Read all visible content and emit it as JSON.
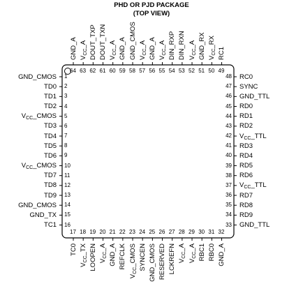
{
  "diagram": {
    "title": "PHD OR PJD PACKAGE",
    "subtitle": "(TOP VIEW)",
    "pins": {
      "left": [
        {
          "num": "1",
          "label": "GND_CMOS"
        },
        {
          "num": "2",
          "label": "TD0"
        },
        {
          "num": "3",
          "label": "TD1"
        },
        {
          "num": "4",
          "label": "TD2"
        },
        {
          "num": "5",
          "label": "VCC_CMOS"
        },
        {
          "num": "6",
          "label": "TD3"
        },
        {
          "num": "7",
          "label": "TD4"
        },
        {
          "num": "8",
          "label": "TD5"
        },
        {
          "num": "9",
          "label": "TD6"
        },
        {
          "num": "10",
          "label": "VCC_CMOS"
        },
        {
          "num": "11",
          "label": "TD7"
        },
        {
          "num": "12",
          "label": "TD8"
        },
        {
          "num": "13",
          "label": "TD9"
        },
        {
          "num": "14",
          "label": "GND_CMOS"
        },
        {
          "num": "15",
          "label": "GND_TX"
        },
        {
          "num": "16",
          "label": "TC1"
        }
      ],
      "right": [
        {
          "num": "48",
          "label": "RC0"
        },
        {
          "num": "47",
          "label": "SYNC"
        },
        {
          "num": "46",
          "label": "GND_TTL"
        },
        {
          "num": "45",
          "label": "RD0"
        },
        {
          "num": "44",
          "label": "RD1"
        },
        {
          "num": "43",
          "label": "RD2"
        },
        {
          "num": "42",
          "label": "VCC_TTL"
        },
        {
          "num": "41",
          "label": "RD3"
        },
        {
          "num": "40",
          "label": "RD4"
        },
        {
          "num": "39",
          "label": "RD5"
        },
        {
          "num": "38",
          "label": "RD6"
        },
        {
          "num": "37",
          "label": "VCC_TTL"
        },
        {
          "num": "36",
          "label": "RD7"
        },
        {
          "num": "35",
          "label": "RD8"
        },
        {
          "num": "34",
          "label": "RD9"
        },
        {
          "num": "33",
          "label": "GND_TTL"
        }
      ],
      "top": [
        {
          "num": "64",
          "label": "GND_A"
        },
        {
          "num": "63",
          "label": "VCC_A"
        },
        {
          "num": "62",
          "label": "DOUT_TXP"
        },
        {
          "num": "61",
          "label": "DOUT_TXN"
        },
        {
          "num": "60",
          "label": "VCC_A"
        },
        {
          "num": "59",
          "label": "GND_A"
        },
        {
          "num": "58",
          "label": "GND_CMOS"
        },
        {
          "num": "57",
          "label": "VCC_A"
        },
        {
          "num": "56",
          "label": "GND_A"
        },
        {
          "num": "55",
          "label": "VCC_A"
        },
        {
          "num": "54",
          "label": "DIN_RXP"
        },
        {
          "num": "53",
          "label": "DIN_RXN"
        },
        {
          "num": "52",
          "label": "VCC_A"
        },
        {
          "num": "51",
          "label": "GND_RX"
        },
        {
          "num": "50",
          "label": "VCC_RX"
        },
        {
          "num": "49",
          "label": "RC1"
        }
      ],
      "bottom": [
        {
          "num": "17",
          "label": "TC0"
        },
        {
          "num": "18",
          "label": "VCC_TX"
        },
        {
          "num": "19",
          "label": "LOOPEN"
        },
        {
          "num": "20",
          "label": "VCC_A"
        },
        {
          "num": "21",
          "label": "GND_A"
        },
        {
          "num": "22",
          "label": "REFCLK"
        },
        {
          "num": "23",
          "label": "VCC_CMOS"
        },
        {
          "num": "24",
          "label": "SYNCEN"
        },
        {
          "num": "25",
          "label": "GND_CMOS"
        },
        {
          "num": "26",
          "label": "RESERVED"
        },
        {
          "num": "27",
          "label": "LCKREFN"
        },
        {
          "num": "28",
          "label": "VCC_A"
        },
        {
          "num": "29",
          "label": "VCC_A"
        },
        {
          "num": "30",
          "label": "RBC1"
        },
        {
          "num": "31",
          "label": "RBC0"
        },
        {
          "num": "32",
          "label": "GND_A"
        }
      ]
    }
  }
}
